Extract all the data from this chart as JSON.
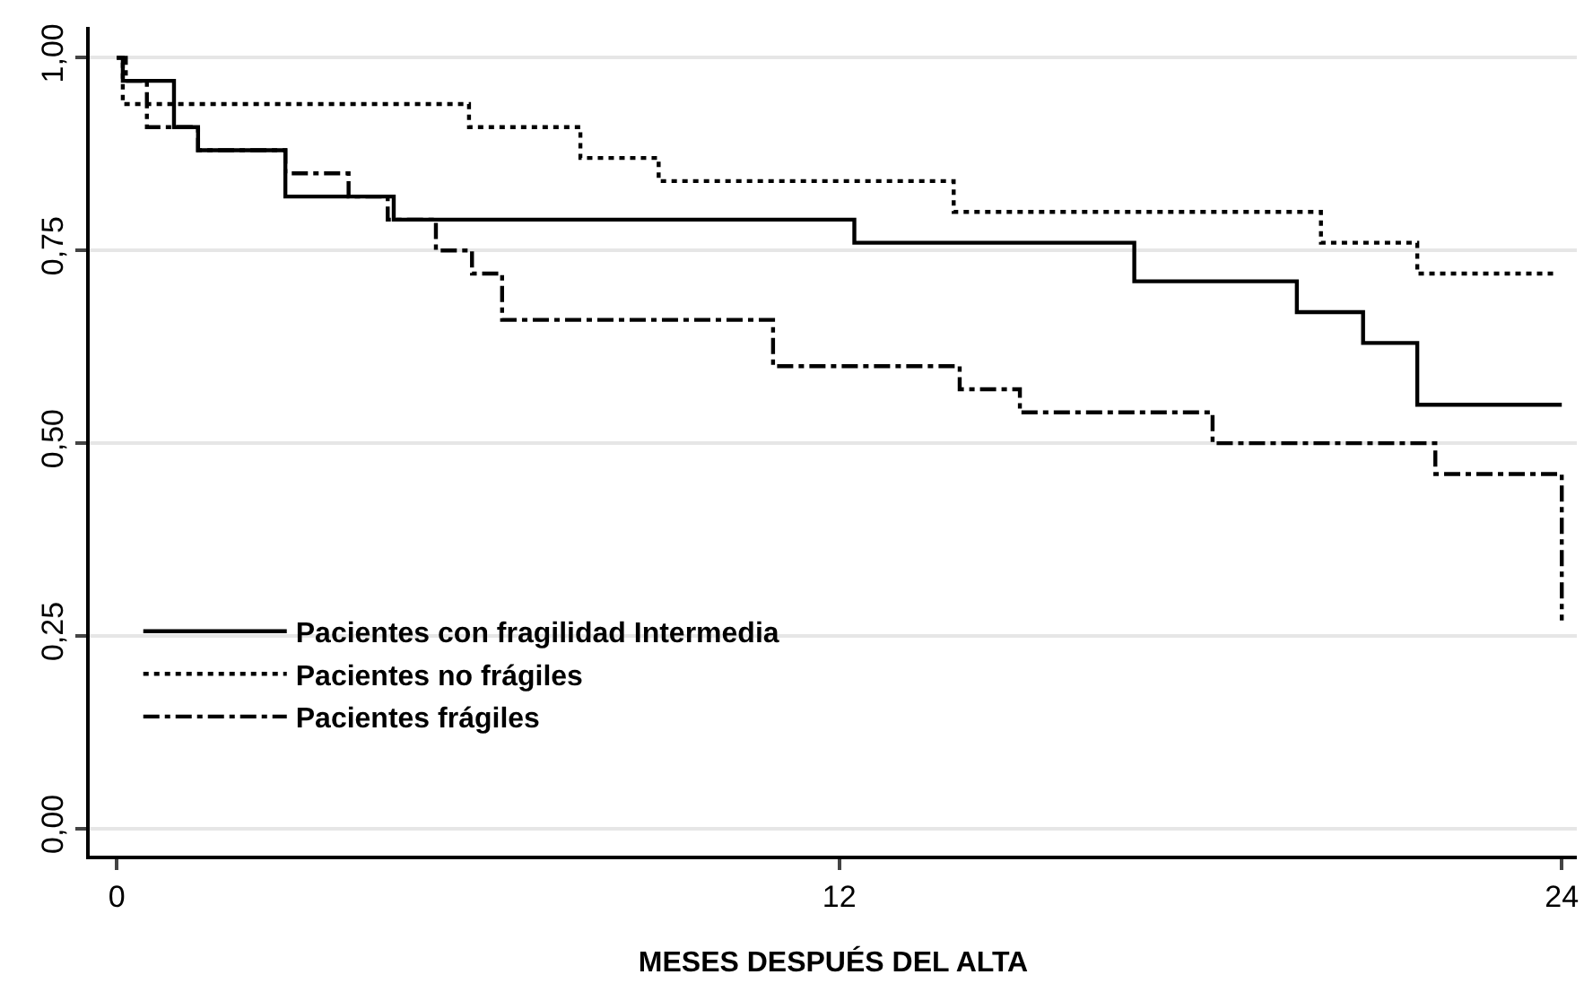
{
  "chart_data": {
    "type": "step",
    "xlabel": "MESES DESPUÉS DEL ALTA",
    "xlim": [
      -0.45,
      24.25
    ],
    "xticks": [
      0,
      12,
      24
    ],
    "ylim": [
      -0.035,
      1.04
    ],
    "yticks": [
      {
        "value": 0,
        "label": "0,00"
      },
      {
        "value": 0.25,
        "label": "0,25"
      },
      {
        "value": 0.5,
        "label": "0,50"
      },
      {
        "value": 0.75,
        "label": "0,75"
      },
      {
        "value": 1,
        "label": "1,00"
      }
    ],
    "grid": "y",
    "legend": "bottom left",
    "series": [
      {
        "name": "Pacientes con fragilidad Intermedia",
        "color": "#000000",
        "line_style": "solid",
        "x": [
          0,
          0.1,
          0.95,
          1.35,
          2.8,
          4.6,
          12.25,
          16.9,
          19.6,
          20.7,
          21.6,
          24
        ],
        "values": [
          1,
          0.97,
          0.91,
          0.88,
          0.82,
          0.79,
          0.76,
          0.71,
          0.67,
          0.63,
          0.55,
          0.55
        ]
      },
      {
        "name": "Pacientes no frágiles",
        "color": "#000000",
        "line_style": "dotted",
        "x": [
          0,
          0.1,
          5.85,
          7.7,
          9.0,
          13.9,
          20.0,
          21.6,
          23.9
        ],
        "values": [
          1,
          0.94,
          0.91,
          0.87,
          0.84,
          0.8,
          0.76,
          0.72,
          0.72
        ]
      },
      {
        "name": "Pacientes frágiles",
        "color": "#000000",
        "line_style": "dashdot",
        "x": [
          0,
          0.15,
          0.5,
          1.35,
          2.8,
          3.85,
          4.5,
          5.3,
          5.9,
          6.4,
          10.9,
          14.0,
          15.0,
          18.2,
          21.9,
          24.0
        ],
        "values": [
          1,
          0.97,
          0.91,
          0.88,
          0.85,
          0.82,
          0.79,
          0.75,
          0.72,
          0.66,
          0.6,
          0.57,
          0.54,
          0.5,
          0.46,
          0.27
        ]
      }
    ]
  }
}
